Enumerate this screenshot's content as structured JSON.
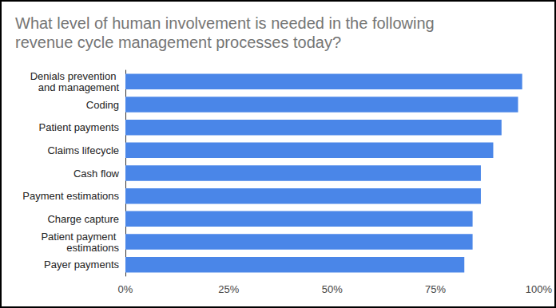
{
  "chart_data": {
    "type": "bar",
    "orientation": "horizontal",
    "title": "What level of human involvement is needed in the following revenue cycle management processes today?",
    "categories": [
      "Denials prevention and management",
      "Coding",
      "Patient payments",
      "Claims lifecycle",
      "Cash flow",
      "Payment estimations",
      "Charge capture",
      "Patient payment estimations",
      "Payer payments"
    ],
    "values": [
      96,
      95,
      91,
      89,
      86,
      86,
      84,
      84,
      82
    ],
    "color": "#4a86e8",
    "xlim": [
      0,
      100
    ],
    "xticks": [
      {
        "value": 0,
        "label": "0%"
      },
      {
        "value": 25,
        "label": "25%"
      },
      {
        "value": 50,
        "label": "50%"
      },
      {
        "value": 75,
        "label": "75%"
      },
      {
        "value": 100,
        "label": "100%"
      }
    ],
    "grid": false
  }
}
